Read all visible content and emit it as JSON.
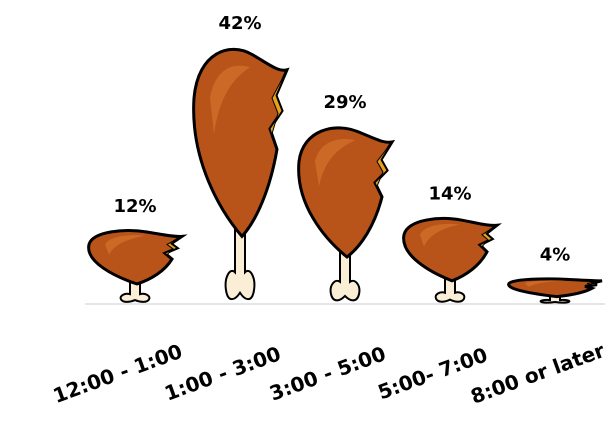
{
  "chart_data": {
    "type": "pictograph",
    "categories": [
      "12:00 - 1:00",
      "1:00 - 3:00",
      "3:00 - 5:00",
      "5:00- 7:00",
      "8:00 or later"
    ],
    "values": [
      12,
      42,
      29,
      14,
      4
    ],
    "value_labels": [
      "12%",
      "42%",
      "29%",
      "14%",
      "4%"
    ],
    "color": "#b8541a"
  }
}
